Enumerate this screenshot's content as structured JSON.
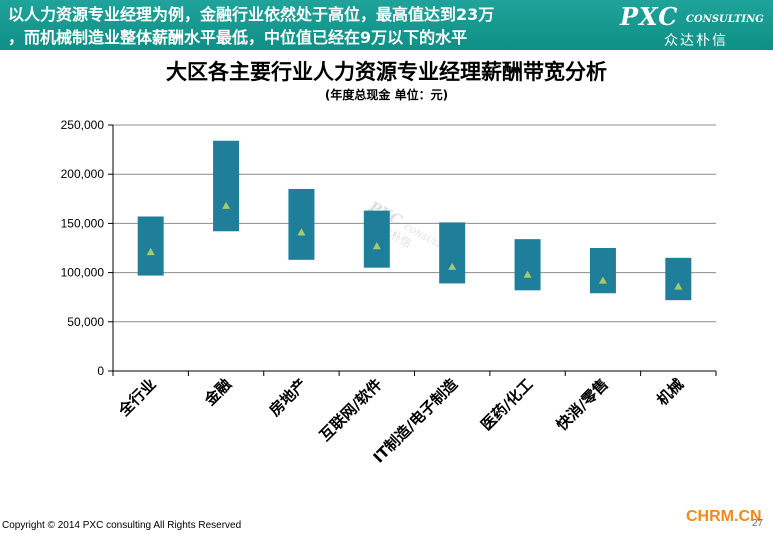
{
  "header": {
    "line1": "以人力资源专业经理为例，金融行业依然处于高位，最高值达到23万",
    "line2": "，而机械制造业整体薪酬水平最低，中位值已经在9万以下的水平"
  },
  "logo": {
    "main": "PXC",
    "sub": "CONSULTING",
    "cn": "众达朴信"
  },
  "watermark": {
    "main": "PXC",
    "sub": "CONSULTING",
    "cn": "众达朴信"
  },
  "chart_data": {
    "type": "range-bar",
    "title": "大区各主要行业人力资源专业经理薪酬带宽分析",
    "subtitle": "(年度总现金 单位：元)",
    "categories": [
      "全行业",
      "金融",
      "房地产",
      "互联网/软件",
      "IT制造/电子制造",
      "医药/化工",
      "快消/零售",
      "机械"
    ],
    "low": [
      97000,
      142000,
      113000,
      105000,
      89000,
      82000,
      79000,
      72000
    ],
    "high": [
      157000,
      234000,
      185000,
      163000,
      151000,
      134000,
      125000,
      115000
    ],
    "median": [
      121000,
      168000,
      141000,
      127000,
      106000,
      98000,
      92000,
      86000
    ],
    "ylim": [
      0,
      250000
    ],
    "yticks": [
      0,
      50000,
      100000,
      150000,
      200000,
      250000
    ],
    "ytick_labels": [
      "0",
      "50,000",
      "100,000",
      "150,000",
      "200,000",
      "250,000"
    ],
    "grid": true,
    "colors": {
      "bar": "#1f7f9a",
      "marker": "#a6c96a",
      "grid": "#8c8c8c"
    }
  },
  "footer": {
    "copyright": "Copyright © 2014 PXC consulting All Rights Reserved",
    "site": "CHRM.CN",
    "page": "27"
  }
}
